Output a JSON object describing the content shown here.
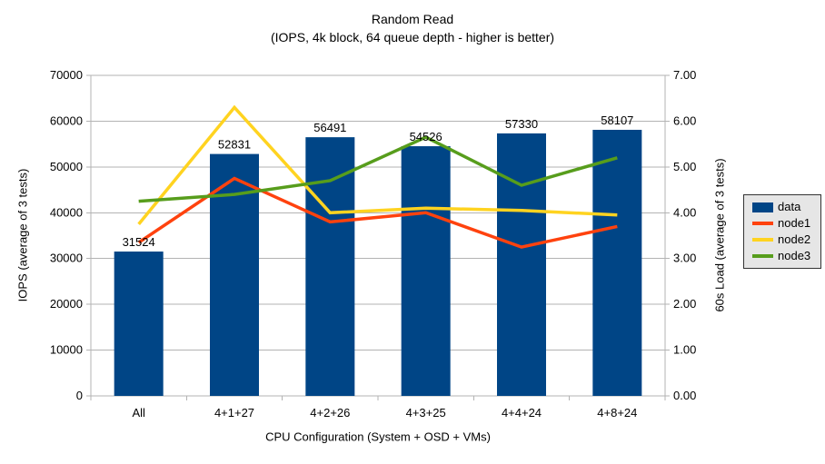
{
  "chart_data": {
    "type": "bar",
    "title": "Random Read",
    "subtitle": "(IOPS, 4k block, 64 queue depth - higher is better)",
    "xlabel": "CPU Configuration (System + OSD + VMs)",
    "ylabel_left": "IOPS (average of 3 tests)",
    "ylabel_right": "60s Load (average of 3 tests)",
    "categories": [
      "All",
      "4+1+27",
      "4+2+26",
      "4+3+25",
      "4+4+24",
      "4+8+24"
    ],
    "series": [
      {
        "name": "data",
        "type": "bar",
        "axis": "left",
        "color": "#004586",
        "values": [
          31524,
          52831,
          56491,
          54526,
          57330,
          58107
        ],
        "data_labels": true
      },
      {
        "name": "node1",
        "type": "line",
        "axis": "right",
        "color": "#FF420E",
        "values": [
          3.35,
          4.75,
          3.8,
          4.0,
          3.25,
          3.7
        ]
      },
      {
        "name": "node2",
        "type": "line",
        "axis": "right",
        "color": "#FFD320",
        "values": [
          3.75,
          6.3,
          4.0,
          4.1,
          4.05,
          3.95
        ]
      },
      {
        "name": "node3",
        "type": "line",
        "axis": "right",
        "color": "#579D1C",
        "values": [
          4.25,
          4.4,
          4.7,
          5.65,
          4.6,
          5.2
        ]
      }
    ],
    "axis_left": {
      "min": 0,
      "max": 70000,
      "step": 10000,
      "decimals": 0
    },
    "axis_right": {
      "min": 0,
      "max": 7,
      "step": 1,
      "decimals": 2
    },
    "grid": "horizontal",
    "legend_position": "right",
    "colors": {
      "grid": "#B3B3B3",
      "axis": "#B3B3B3",
      "text": "#000000",
      "legend_bg": "#E6E6E6",
      "legend_border": "#333333",
      "background": "#FFFFFF"
    }
  }
}
